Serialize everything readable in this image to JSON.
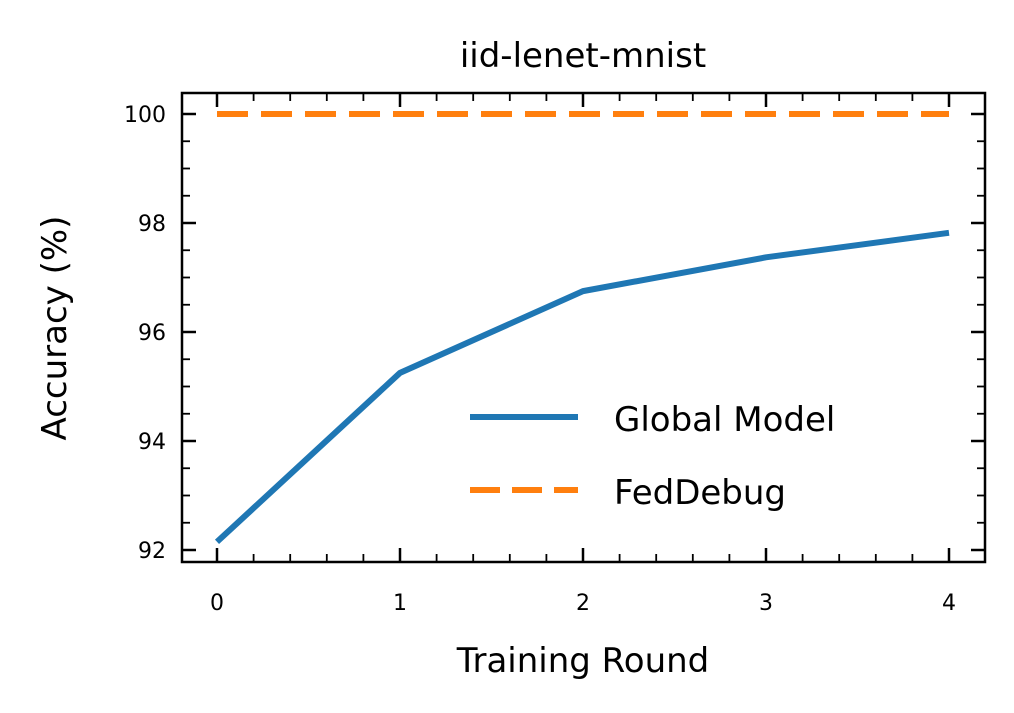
{
  "chart_data": {
    "type": "line",
    "title": "iid-lenet-mnist",
    "xlabel": "Training Round",
    "ylabel": "Accuracy (%)",
    "x": [
      0,
      1,
      2,
      3,
      4
    ],
    "xticks": [
      "0",
      "1",
      "2",
      "3",
      "4"
    ],
    "yticks": [
      "92",
      "94",
      "96",
      "98",
      "100"
    ],
    "xlim": [
      -0.19,
      4.19
    ],
    "ylim": [
      91.8,
      100.4
    ],
    "grid": false,
    "legend_position": "lower right",
    "series": [
      {
        "name": "Global Model",
        "values": [
          92.15,
          95.25,
          96.75,
          97.37,
          97.82
        ],
        "color": "#1f77b4",
        "style": "solid"
      },
      {
        "name": "FedDebug",
        "values": [
          100,
          100,
          100,
          100,
          100
        ],
        "color": "#ff7f0e",
        "style": "dashed"
      }
    ]
  }
}
